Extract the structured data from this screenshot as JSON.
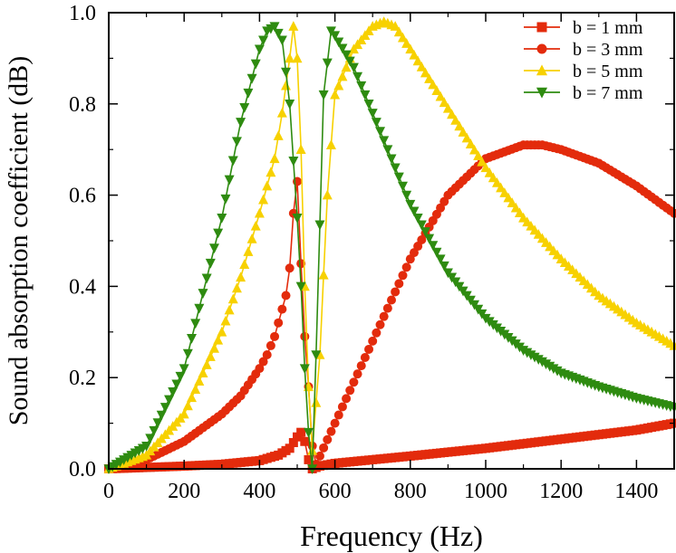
{
  "chart_data": {
    "type": "line",
    "title": "",
    "xlabel": "Frequency (Hz)",
    "ylabel": "Sound absorption coefficient (dB)",
    "xlim": [
      0,
      1500
    ],
    "ylim": [
      0,
      1.0
    ],
    "xticks": [
      0,
      200,
      400,
      600,
      800,
      1000,
      1200,
      1400
    ],
    "yticks": [
      0.0,
      0.2,
      0.4,
      0.6,
      0.8,
      1.0
    ],
    "xtick_labels": [
      "0",
      "200",
      "400",
      "600",
      "800",
      "1000",
      "1200",
      "1400"
    ],
    "ytick_labels": [
      "0.0",
      "0.2",
      "0.4",
      "0.6",
      "0.8",
      "1.0"
    ],
    "grid": false,
    "legend_position": "top-right",
    "series": [
      {
        "name": "b = 1 mm",
        "color": "#e32b0c",
        "marker": "square",
        "x": [
          0,
          100,
          200,
          300,
          400,
          450,
          480,
          500,
          510,
          520,
          530,
          540,
          560,
          600,
          800,
          1000,
          1200,
          1400,
          1500
        ],
        "y": [
          0,
          0.003,
          0.006,
          0.01,
          0.018,
          0.03,
          0.045,
          0.07,
          0.08,
          0.06,
          0.02,
          0.0,
          0.006,
          0.012,
          0.028,
          0.045,
          0.065,
          0.085,
          0.1
        ]
      },
      {
        "name": "b = 3 mm",
        "color": "#e32b0c",
        "marker": "circle",
        "x": [
          0,
          100,
          200,
          300,
          350,
          400,
          420,
          440,
          460,
          470,
          480,
          490,
          500,
          510,
          520,
          530,
          540,
          550,
          600,
          700,
          800,
          900,
          1000,
          1100,
          1150,
          1200,
          1300,
          1400,
          1500
        ],
        "y": [
          0,
          0.02,
          0.06,
          0.12,
          0.16,
          0.22,
          0.25,
          0.29,
          0.35,
          0.38,
          0.44,
          0.56,
          0.63,
          0.45,
          0.29,
          0.18,
          0.05,
          0.01,
          0.1,
          0.28,
          0.46,
          0.6,
          0.68,
          0.71,
          0.71,
          0.7,
          0.67,
          0.62,
          0.56
        ]
      },
      {
        "name": "b = 5 mm",
        "color": "#f7d100",
        "marker": "triangle-up",
        "x": [
          0,
          100,
          200,
          300,
          350,
          400,
          440,
          460,
          480,
          490,
          500,
          510,
          520,
          530,
          540,
          560,
          580,
          600,
          650,
          700,
          730,
          760,
          800,
          900,
          1000,
          1100,
          1200,
          1300,
          1400,
          1500
        ],
        "y": [
          0,
          0.03,
          0.12,
          0.3,
          0.42,
          0.56,
          0.68,
          0.78,
          0.9,
          0.97,
          0.9,
          0.7,
          0.4,
          0.18,
          0.04,
          0.25,
          0.6,
          0.82,
          0.92,
          0.97,
          0.98,
          0.97,
          0.92,
          0.79,
          0.66,
          0.55,
          0.46,
          0.38,
          0.32,
          0.27
        ]
      },
      {
        "name": "b = 7 mm",
        "color": "#2e8b10",
        "marker": "triangle-down",
        "x": [
          0,
          100,
          200,
          300,
          350,
          400,
          420,
          440,
          460,
          480,
          500,
          510,
          520,
          530,
          540,
          550,
          570,
          590,
          600,
          650,
          700,
          800,
          900,
          1000,
          1100,
          1200,
          1300,
          1400,
          1500
        ],
        "y": [
          0,
          0.05,
          0.22,
          0.55,
          0.76,
          0.92,
          0.96,
          0.97,
          0.94,
          0.8,
          0.55,
          0.4,
          0.22,
          0.08,
          0.0,
          0.25,
          0.82,
          0.96,
          0.95,
          0.88,
          0.78,
          0.58,
          0.43,
          0.33,
          0.26,
          0.21,
          0.18,
          0.155,
          0.135
        ]
      }
    ]
  }
}
